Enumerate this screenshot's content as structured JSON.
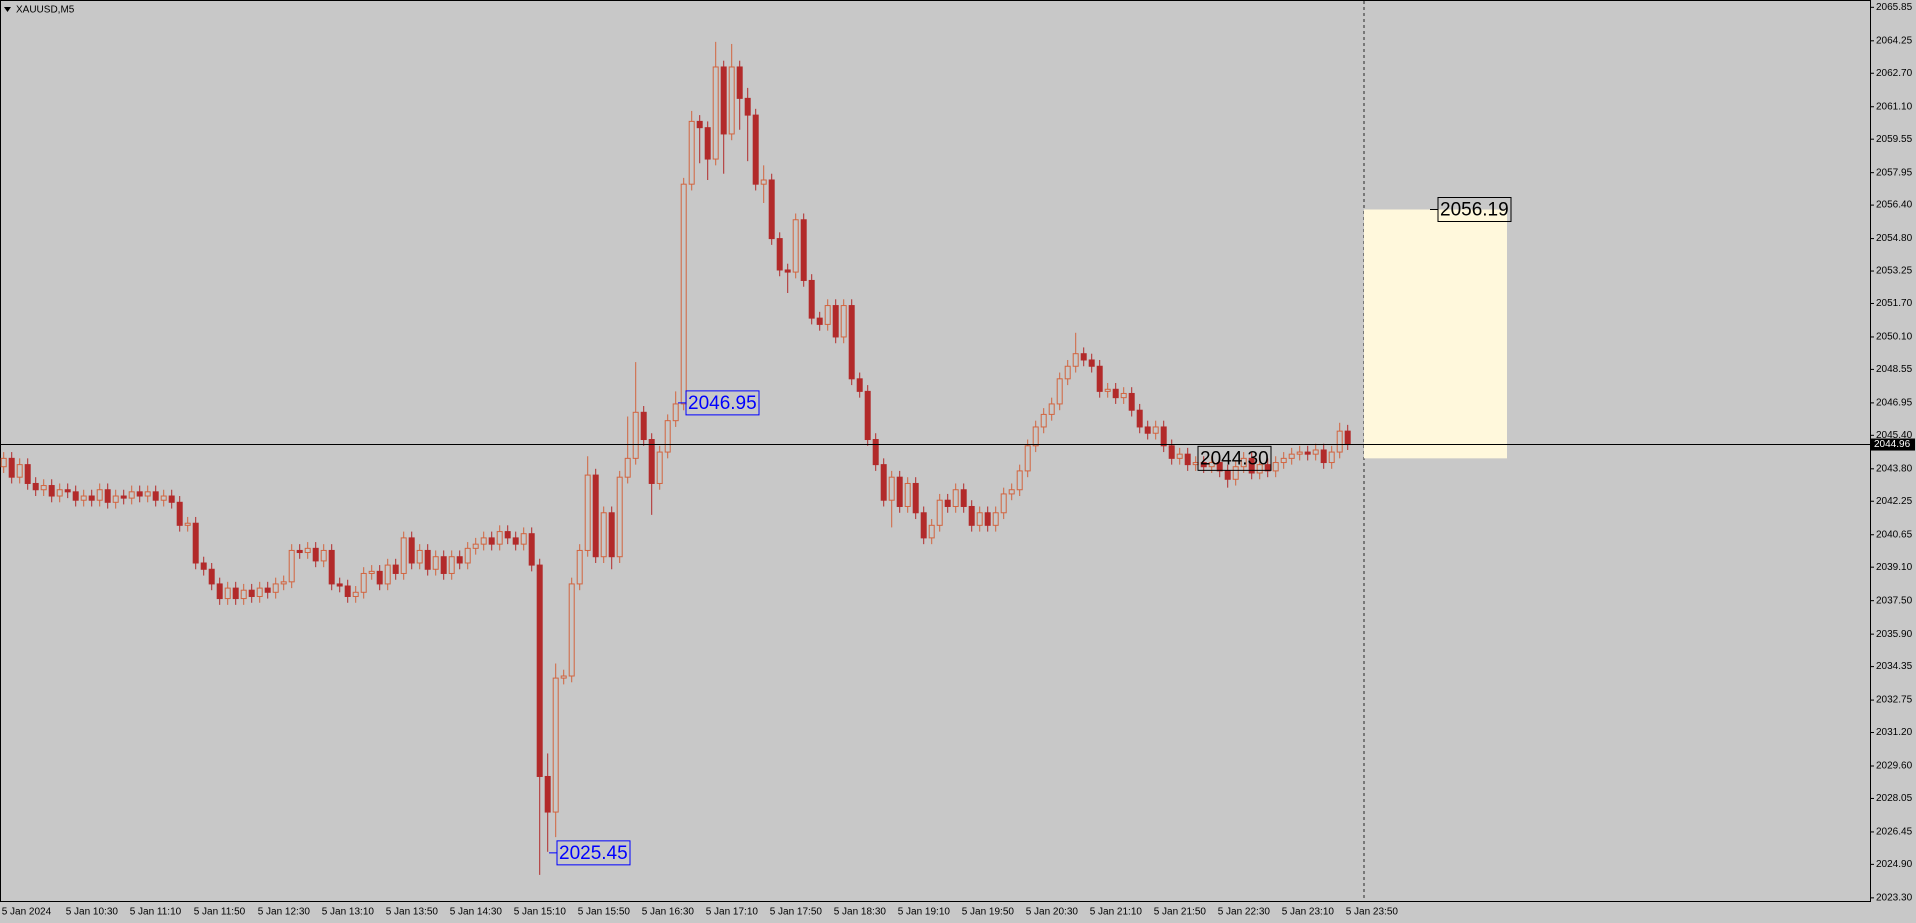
{
  "chart_data": {
    "type": "candlestick",
    "title": "XAUUSD,M5",
    "categories": [
      "5 Jan 2024",
      null,
      null,
      null,
      null,
      null,
      null,
      null,
      "5 Jan 10:30",
      null,
      null,
      null,
      null,
      null,
      null,
      null,
      "5 Jan 11:10",
      null,
      null,
      null,
      null,
      null,
      null,
      null,
      "5 Jan 11:50",
      null,
      null,
      null,
      null,
      null,
      null,
      null,
      "5 Jan 12:30",
      null,
      null,
      null,
      null,
      null,
      null,
      null,
      "5 Jan 13:10",
      null,
      null,
      null,
      null,
      null,
      null,
      null,
      "5 Jan 13:50",
      null,
      null,
      null,
      null,
      null,
      null,
      null,
      "5 Jan 14:30",
      null,
      null,
      null,
      null,
      null,
      null,
      null,
      "5 Jan 15:10",
      null,
      null,
      null,
      null,
      null,
      null,
      null,
      "5 Jan 15:50",
      null,
      null,
      null,
      null,
      null,
      null,
      null,
      "5 Jan 16:30",
      null,
      null,
      null,
      null,
      null,
      null,
      null,
      "5 Jan 17:10",
      null,
      null,
      null,
      null,
      null,
      null,
      null,
      "5 Jan 17:50",
      null,
      null,
      null,
      null,
      null,
      null,
      null,
      "5 Jan 18:30",
      null,
      null,
      null,
      null,
      null,
      null,
      null,
      "5 Jan 19:10",
      null,
      null,
      null,
      null,
      null,
      null,
      null,
      "5 Jan 19:50",
      null,
      null,
      null,
      null,
      null,
      null,
      null,
      "5 Jan 20:30",
      null,
      null,
      null,
      null,
      null,
      null,
      null,
      "5 Jan 21:10",
      null,
      null,
      null,
      null,
      null,
      null,
      null,
      "5 Jan 21:50",
      null,
      null,
      null,
      null,
      null,
      null,
      null,
      "5 Jan 22:30",
      null,
      null,
      null,
      null,
      null,
      null,
      null,
      "5 Jan 23:10",
      null,
      null,
      null,
      null,
      null,
      null,
      null,
      "5 Jan 23:50"
    ],
    "open": [
      2043.9,
      2044.3,
      2043.4,
      2044.0,
      2043.1,
      2042.8,
      2043.0,
      2042.5,
      2042.8,
      2042.7,
      2042.3,
      2042.5,
      2042.3,
      2042.8,
      2042.2,
      2042.5,
      2042.4,
      2042.7,
      2042.5,
      2042.7,
      2042.3,
      2042.5,
      2042.2,
      2041.1,
      2041.2,
      2039.3,
      2039.0,
      2038.3,
      2037.6,
      2038.1,
      2037.6,
      2038.0,
      2037.7,
      2038.1,
      2037.9,
      2038.3,
      2038.4,
      2039.9,
      2039.8,
      2040.0,
      2039.4,
      2039.9,
      2038.3,
      2038.2,
      2037.7,
      2037.9,
      2038.8,
      2038.9,
      2038.3,
      2039.2,
      2038.8,
      2040.5,
      2039.3,
      2039.9,
      2039.0,
      2039.6,
      2038.8,
      2039.6,
      2039.3,
      2040.0,
      2040.2,
      2040.5,
      2040.2,
      2040.8,
      2040.5,
      2040.2,
      2040.7,
      2039.2,
      2029.1,
      2027.4,
      2033.8,
      2033.9,
      2038.3,
      2039.9,
      2043.5,
      2039.6,
      2041.7,
      2039.6,
      2043.4,
      2044.3,
      2046.5,
      2045.2,
      2043.1,
      2044.6,
      2046.1,
      2046.9,
      2057.4,
      2060.4,
      2060.1,
      2058.6,
      2063.0,
      2059.8,
      2063.0,
      2061.5,
      2060.7,
      2057.4,
      2057.6,
      2054.8,
      2053.3,
      2053.2,
      2055.7,
      2052.8,
      2051.0,
      2050.7,
      2051.6,
      2050.1,
      2051.6,
      2048.1,
      2047.5,
      2045.2,
      2044.0,
      2042.3,
      2043.4,
      2042.0,
      2043.1,
      2041.7,
      2040.5,
      2041.1,
      2042.3,
      2042.0,
      2042.8,
      2042.0,
      2041.1,
      2041.7,
      2041.1,
      2041.7,
      2042.6,
      2042.8,
      2043.7,
      2044.9,
      2045.8,
      2046.4,
      2046.9,
      2048.1,
      2048.7,
      2049.3,
      2049.0,
      2048.7,
      2047.5,
      2047.6,
      2047.2,
      2047.4,
      2046.6,
      2045.8,
      2045.5,
      2045.8,
      2044.9,
      2044.3,
      2044.5,
      2044.0,
      2044.1,
      2043.9,
      2044.1,
      2043.7,
      2043.3,
      2043.9,
      2044.3,
      2043.6,
      2044.0,
      2043.7,
      2044.1,
      2044.3,
      2044.5,
      2044.6,
      2044.5,
      2044.7,
      2044.1,
      2044.6,
      2045.6
    ],
    "high": [
      2044.6,
      2044.6,
      2044.3,
      2044.3,
      2043.4,
      2043.3,
      2043.3,
      2043.1,
      2043.1,
      2043.0,
      2042.8,
      2042.8,
      2043.1,
      2043.1,
      2042.8,
      2042.8,
      2043.0,
      2043.0,
      2043.0,
      2043.0,
      2042.8,
      2042.8,
      2042.5,
      2041.5,
      2041.5,
      2039.6,
      2039.3,
      2038.6,
      2038.4,
      2038.4,
      2038.3,
      2038.3,
      2038.4,
      2038.4,
      2038.6,
      2038.7,
      2040.2,
      2040.2,
      2040.3,
      2040.3,
      2040.2,
      2040.2,
      2038.6,
      2038.5,
      2038.2,
      2039.1,
      2039.2,
      2039.2,
      2039.5,
      2039.5,
      2040.8,
      2040.8,
      2040.2,
      2040.2,
      2039.9,
      2039.9,
      2039.9,
      2039.9,
      2040.3,
      2040.5,
      2040.8,
      2040.8,
      2041.1,
      2041.1,
      2040.8,
      2041.0,
      2041.0,
      2039.5,
      2030.2,
      2034.5,
      2034.2,
      2038.6,
      2040.2,
      2044.4,
      2043.8,
      2042.0,
      2042.0,
      2043.7,
      2046.3,
      2048.9,
      2046.8,
      2045.5,
      2044.9,
      2046.4,
      2047.5,
      2057.7,
      2060.9,
      2060.7,
      2060.4,
      2064.2,
      2063.3,
      2064.1,
      2063.3,
      2062.0,
      2061.0,
      2058.3,
      2057.9,
      2055.1,
      2053.6,
      2056.0,
      2056.0,
      2053.1,
      2051.3,
      2051.9,
      2051.9,
      2051.9,
      2051.9,
      2048.4,
      2047.8,
      2045.5,
      2044.3,
      2043.7,
      2043.7,
      2043.4,
      2043.4,
      2042.0,
      2041.4,
      2042.6,
      2042.6,
      2043.1,
      2043.1,
      2042.3,
      2042.0,
      2042.0,
      2042.0,
      2042.9,
      2043.1,
      2044.0,
      2045.2,
      2046.1,
      2046.7,
      2047.2,
      2048.4,
      2049.0,
      2050.3,
      2049.6,
      2049.3,
      2049.0,
      2047.9,
      2047.9,
      2047.7,
      2047.7,
      2046.9,
      2046.1,
      2046.1,
      2046.1,
      2045.2,
      2044.8,
      2044.8,
      2044.4,
      2044.4,
      2044.4,
      2044.4,
      2044.0,
      2044.2,
      2044.6,
      2044.6,
      2044.3,
      2044.3,
      2044.4,
      2044.6,
      2044.8,
      2044.9,
      2044.9,
      2045.0,
      2045.0,
      2044.9,
      2046.0,
      2045.9
    ],
    "low": [
      2043.6,
      2043.1,
      2043.1,
      2042.8,
      2042.5,
      2042.5,
      2042.2,
      2042.2,
      2042.4,
      2042.0,
      2042.0,
      2042.0,
      2042.0,
      2041.9,
      2041.9,
      2042.1,
      2042.1,
      2042.2,
      2042.2,
      2042.0,
      2042.0,
      2041.9,
      2040.8,
      2040.8,
      2039.0,
      2038.7,
      2038.0,
      2037.3,
      2037.3,
      2037.3,
      2037.3,
      2037.4,
      2037.4,
      2037.6,
      2037.6,
      2038.0,
      2038.1,
      2039.5,
      2039.5,
      2039.1,
      2039.1,
      2038.0,
      2037.9,
      2037.4,
      2037.4,
      2037.6,
      2038.5,
      2038.0,
      2038.0,
      2038.5,
      2038.5,
      2039.0,
      2039.0,
      2038.7,
      2038.7,
      2038.5,
      2038.5,
      2039.0,
      2039.0,
      2039.7,
      2039.9,
      2039.9,
      2039.9,
      2040.2,
      2039.9,
      2039.9,
      2038.9,
      2024.4,
      2025.5,
      2026.2,
      2033.5,
      2033.6,
      2038.0,
      2039.6,
      2039.3,
      2039.3,
      2039.0,
      2039.3,
      2043.1,
      2044.0,
      2044.9,
      2041.6,
      2042.8,
      2044.3,
      2045.8,
      2046.6,
      2057.1,
      2058.4,
      2057.6,
      2058.3,
      2057.9,
      2059.5,
      2060.0,
      2058.5,
      2057.1,
      2056.5,
      2054.5,
      2053.0,
      2052.2,
      2052.9,
      2052.5,
      2050.7,
      2050.4,
      2050.4,
      2049.8,
      2049.8,
      2047.8,
      2047.2,
      2044.9,
      2043.7,
      2042.0,
      2041.0,
      2041.7,
      2041.7,
      2041.4,
      2040.2,
      2040.2,
      2040.8,
      2041.7,
      2041.7,
      2041.7,
      2040.8,
      2040.8,
      2040.8,
      2040.8,
      2041.4,
      2042.3,
      2042.5,
      2043.4,
      2044.6,
      2045.5,
      2046.1,
      2046.6,
      2047.8,
      2048.4,
      2048.7,
      2048.4,
      2047.2,
      2047.2,
      2046.9,
      2046.9,
      2046.3,
      2045.5,
      2045.2,
      2045.2,
      2044.6,
      2044.0,
      2044.0,
      2043.7,
      2043.7,
      2043.6,
      2043.6,
      2043.4,
      2042.9,
      2043.0,
      2043.6,
      2043.3,
      2043.3,
      2043.4,
      2043.4,
      2043.8,
      2044.0,
      2044.2,
      2044.2,
      2044.2,
      2043.8,
      2043.8,
      2044.3,
      2044.7
    ],
    "close": [
      2044.3,
      2043.4,
      2044.0,
      2043.1,
      2042.8,
      2043.0,
      2042.5,
      2042.8,
      2042.7,
      2042.3,
      2042.5,
      2042.3,
      2042.8,
      2042.2,
      2042.5,
      2042.4,
      2042.7,
      2042.5,
      2042.7,
      2042.3,
      2042.5,
      2042.2,
      2041.1,
      2041.2,
      2039.3,
      2039.0,
      2038.3,
      2037.6,
      2038.1,
      2037.6,
      2038.0,
      2037.7,
      2038.1,
      2037.9,
      2038.3,
      2038.4,
      2039.9,
      2039.8,
      2040.0,
      2039.4,
      2039.9,
      2038.3,
      2038.2,
      2037.7,
      2037.9,
      2038.8,
      2038.9,
      2038.3,
      2039.2,
      2038.8,
      2040.5,
      2039.3,
      2039.9,
      2039.0,
      2039.6,
      2038.8,
      2039.6,
      2039.3,
      2040.0,
      2040.2,
      2040.5,
      2040.2,
      2040.8,
      2040.5,
      2040.2,
      2040.7,
      2039.2,
      2029.1,
      2027.4,
      2033.8,
      2033.9,
      2038.3,
      2039.9,
      2043.5,
      2039.6,
      2041.7,
      2039.6,
      2043.4,
      2044.3,
      2046.5,
      2045.2,
      2043.1,
      2044.6,
      2046.1,
      2046.9,
      2057.4,
      2060.4,
      2060.1,
      2058.6,
      2063.0,
      2059.8,
      2063.0,
      2061.5,
      2060.7,
      2057.4,
      2057.6,
      2054.8,
      2053.3,
      2053.2,
      2055.7,
      2052.8,
      2051.0,
      2050.7,
      2051.6,
      2050.1,
      2051.6,
      2048.1,
      2047.5,
      2045.2,
      2044.0,
      2042.3,
      2043.4,
      2042.0,
      2043.1,
      2041.7,
      2040.5,
      2041.1,
      2042.3,
      2042.0,
      2042.8,
      2042.0,
      2041.1,
      2041.7,
      2041.1,
      2041.7,
      2042.6,
      2042.8,
      2043.7,
      2044.9,
      2045.8,
      2046.4,
      2046.9,
      2048.1,
      2048.7,
      2049.3,
      2049.0,
      2048.7,
      2047.5,
      2047.6,
      2047.2,
      2047.4,
      2046.6,
      2045.8,
      2045.5,
      2045.8,
      2044.9,
      2044.3,
      2044.5,
      2044.0,
      2044.1,
      2043.9,
      2044.1,
      2043.7,
      2043.3,
      2043.9,
      2044.3,
      2043.6,
      2044.0,
      2043.7,
      2044.1,
      2044.3,
      2044.5,
      2044.6,
      2044.5,
      2044.7,
      2044.1,
      2044.6,
      2045.6,
      2044.96
    ],
    "up_color": "#d2643f",
    "down_color": "#b22a2a",
    "ylim": [
      2023.15,
      2066.2
    ],
    "yticks": [
      2065.85,
      2064.25,
      {
        "value": 2062.7,
        "label": "2062.70"
      },
      {
        "value": 2061.1,
        "label": "2061.10"
      },
      2059.55,
      2057.95,
      {
        "value": 2056.4,
        "label": "2056.40"
      },
      {
        "value": 2054.8,
        "label": "2054.80"
      },
      2053.25,
      {
        "value": 2051.7,
        "label": "2051.70"
      },
      {
        "value": 2050.1,
        "label": "2050.10"
      },
      2048.55,
      2046.95,
      {
        "value": 2045.4,
        "label": "2045.40"
      },
      {
        "value": 2043.8,
        "label": "2043.80"
      },
      2042.25,
      2040.65,
      {
        "value": 2039.1,
        "label": "2039.10"
      },
      {
        "value": 2037.5,
        "label": "2037.50"
      },
      {
        "value": 2035.9,
        "label": "2035.90"
      },
      2034.35,
      2032.75,
      {
        "value": 2031.2,
        "label": "2031.20"
      },
      {
        "value": 2029.6,
        "label": "2029.60"
      },
      2028.05,
      2026.45,
      {
        "value": 2024.9,
        "label": "2024.90"
      },
      {
        "value": 2023.3,
        "label": "2023.30"
      }
    ],
    "annotations": [
      2046.95,
      2025.45,
      {
        "value": 2044.3,
        "label": "2044.30"
      },
      2056.19
    ],
    "grid": false
  }
}
